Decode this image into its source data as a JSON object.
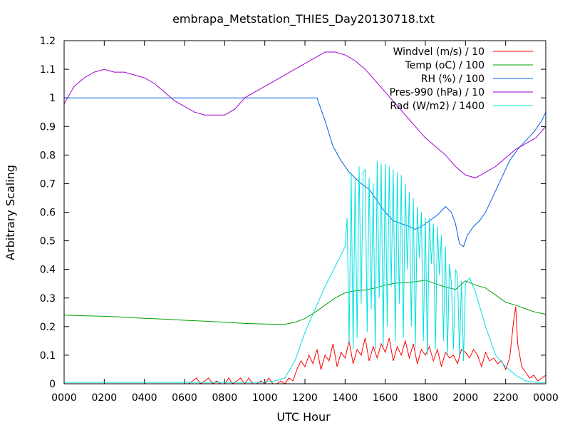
{
  "chart_data": {
    "type": "line",
    "title": "embrapa_Metstation_THIES_Day20130718.txt",
    "xlabel": "UTC Hour",
    "ylabel": "Arbitrary Scaling",
    "xlim": [
      0,
      24
    ],
    "ylim": [
      0,
      1.2
    ],
    "x_ticks": [
      "0000",
      "0200",
      "0400",
      "0600",
      "0800",
      "1000",
      "1200",
      "1400",
      "1600",
      "1800",
      "2000",
      "2200",
      "0000"
    ],
    "y_ticks": [
      "0",
      "0.1",
      "0.2",
      "0.3",
      "0.4",
      "0.5",
      "0.6",
      "0.7",
      "0.8",
      "0.9",
      "1",
      "1.1",
      "1.2"
    ],
    "grid": false,
    "legend_position": "top-right",
    "series": [
      {
        "name": "Windvel (m/s) / 10",
        "color": "#ff0000",
        "x": [
          0,
          6.2,
          6.4,
          6.6,
          6.8,
          7.0,
          7.2,
          7.4,
          7.6,
          7.8,
          8.0,
          8.2,
          8.4,
          8.6,
          8.8,
          9.0,
          9.2,
          9.4,
          9.6,
          9.8,
          10.0,
          10.2,
          10.4,
          10.6,
          10.8,
          11.0,
          11.2,
          11.4,
          11.6,
          11.8,
          12.0,
          12.2,
          12.4,
          12.6,
          12.8,
          13.0,
          13.2,
          13.4,
          13.6,
          13.8,
          14.0,
          14.2,
          14.4,
          14.6,
          14.8,
          15.0,
          15.2,
          15.4,
          15.6,
          15.8,
          16.0,
          16.2,
          16.4,
          16.6,
          16.8,
          17.0,
          17.2,
          17.4,
          17.6,
          17.8,
          18.0,
          18.2,
          18.4,
          18.6,
          18.8,
          19.0,
          19.2,
          19.4,
          19.6,
          19.8,
          20.0,
          20.2,
          20.4,
          20.6,
          20.8,
          21.0,
          21.2,
          21.4,
          21.6,
          21.8,
          22.0,
          22.2,
          22.4,
          22.5,
          22.6,
          22.8,
          23.0,
          23.2,
          23.4,
          23.6,
          23.8,
          24.0
        ],
        "values": [
          0,
          0,
          0.01,
          0.02,
          0,
          0.01,
          0.02,
          0,
          0.01,
          0,
          0,
          0.02,
          0,
          0.01,
          0.02,
          0,
          0.02,
          0,
          0,
          0.01,
          0,
          0.02,
          0,
          0,
          0.01,
          0,
          0.02,
          0.01,
          0.05,
          0.08,
          0.06,
          0.1,
          0.07,
          0.12,
          0.05,
          0.1,
          0.08,
          0.14,
          0.06,
          0.11,
          0.09,
          0.15,
          0.07,
          0.12,
          0.1,
          0.16,
          0.08,
          0.13,
          0.09,
          0.14,
          0.11,
          0.16,
          0.08,
          0.13,
          0.1,
          0.15,
          0.09,
          0.14,
          0.07,
          0.12,
          0.1,
          0.13,
          0.08,
          0.12,
          0.06,
          0.11,
          0.09,
          0.1,
          0.07,
          0.12,
          0.11,
          0.09,
          0.12,
          0.1,
          0.06,
          0.11,
          0.08,
          0.09,
          0.07,
          0.08,
          0.05,
          0.09,
          0.22,
          0.27,
          0.14,
          0.06,
          0.04,
          0.02,
          0.03,
          0.01,
          0.02,
          0.03
        ]
      },
      {
        "name": "Temp (oC) / 100",
        "color": "#00a000",
        "x": [
          0,
          1,
          2,
          3,
          4,
          5,
          6,
          7,
          8,
          9,
          10,
          10.5,
          11,
          11.5,
          12,
          12.5,
          13,
          13.5,
          14,
          14.5,
          15,
          15.5,
          16,
          16.5,
          17,
          17.5,
          18,
          18.5,
          19,
          19.5,
          20,
          20.5,
          21,
          21.5,
          22,
          22.5,
          23,
          23.5,
          24
        ],
        "values": [
          0.24,
          0.238,
          0.236,
          0.233,
          0.229,
          0.226,
          0.222,
          0.219,
          0.215,
          0.211,
          0.209,
          0.208,
          0.208,
          0.215,
          0.228,
          0.25,
          0.275,
          0.3,
          0.318,
          0.325,
          0.328,
          0.335,
          0.345,
          0.352,
          0.353,
          0.357,
          0.362,
          0.35,
          0.338,
          0.33,
          0.36,
          0.345,
          0.335,
          0.31,
          0.285,
          0.275,
          0.262,
          0.25,
          0.243
        ]
      },
      {
        "name": "RH (%) / 100",
        "color": "#0060e0",
        "x": [
          0,
          2,
          4,
          6,
          8,
          10,
          11,
          12,
          12.4,
          12.6,
          13.0,
          13.4,
          13.8,
          14.2,
          14.5,
          14.8,
          15.2,
          15.6,
          16.0,
          16.4,
          16.8,
          17.2,
          17.5,
          17.8,
          18.2,
          18.6,
          19.0,
          19.3,
          19.5,
          19.7,
          19.9,
          20.1,
          20.4,
          20.7,
          21.0,
          21.4,
          21.8,
          22.2,
          22.6,
          23.0,
          23.4,
          23.8,
          24.0
        ],
        "values": [
          1,
          1,
          1,
          1,
          1,
          1,
          1,
          1,
          1,
          1,
          0.92,
          0.83,
          0.78,
          0.74,
          0.72,
          0.7,
          0.68,
          0.64,
          0.6,
          0.57,
          0.56,
          0.55,
          0.54,
          0.55,
          0.57,
          0.59,
          0.62,
          0.6,
          0.56,
          0.49,
          0.48,
          0.52,
          0.55,
          0.57,
          0.6,
          0.66,
          0.72,
          0.78,
          0.82,
          0.85,
          0.88,
          0.92,
          0.95
        ]
      },
      {
        "name": "Pres-990 (hPa) / 10",
        "color": "#a000d0",
        "x": [
          0,
          0.5,
          1,
          1.5,
          2,
          2.5,
          3,
          3.5,
          4,
          4.5,
          5,
          5.5,
          6,
          6.5,
          7,
          7.5,
          8,
          8.5,
          9,
          9.5,
          10,
          10.5,
          11,
          11.5,
          12,
          12.5,
          13,
          13.5,
          14,
          14.5,
          15,
          15.5,
          16,
          16.5,
          17,
          17.5,
          18,
          18.5,
          19,
          19.5,
          20,
          20.5,
          21,
          21.5,
          22,
          22.5,
          23,
          23.5,
          24
        ],
        "values": [
          0.98,
          1.04,
          1.07,
          1.09,
          1.1,
          1.09,
          1.09,
          1.08,
          1.07,
          1.05,
          1.02,
          0.99,
          0.97,
          0.95,
          0.94,
          0.94,
          0.94,
          0.96,
          1.0,
          1.02,
          1.04,
          1.06,
          1.08,
          1.1,
          1.12,
          1.14,
          1.16,
          1.16,
          1.15,
          1.13,
          1.1,
          1.06,
          1.02,
          0.98,
          0.94,
          0.9,
          0.86,
          0.83,
          0.8,
          0.76,
          0.73,
          0.72,
          0.74,
          0.76,
          0.79,
          0.82,
          0.84,
          0.86,
          0.9
        ]
      },
      {
        "name": "Rad (W/m2) / 1400",
        "color": "#00e0e0",
        "x": [
          0,
          10,
          10.5,
          11,
          11.5,
          12,
          12.5,
          13,
          13.5,
          13.8,
          14.0,
          14.1,
          14.2,
          14.3,
          14.4,
          14.5,
          14.6,
          14.7,
          14.8,
          14.9,
          15.0,
          15.1,
          15.2,
          15.3,
          15.4,
          15.5,
          15.6,
          15.7,
          15.8,
          15.9,
          16.0,
          16.1,
          16.2,
          16.3,
          16.4,
          16.5,
          16.6,
          16.7,
          16.8,
          16.9,
          17.0,
          17.1,
          17.2,
          17.3,
          17.4,
          17.5,
          17.6,
          17.7,
          17.8,
          17.9,
          18.0,
          18.1,
          18.2,
          18.3,
          18.4,
          18.5,
          18.6,
          18.7,
          18.8,
          18.9,
          19.0,
          19.1,
          19.2,
          19.3,
          19.4,
          19.5,
          19.6,
          19.7,
          19.8,
          19.9,
          20.0,
          20.2,
          20.5,
          21,
          21.5,
          22,
          22.5,
          23,
          23.5,
          24
        ],
        "values": [
          0.005,
          0.005,
          0.01,
          0.02,
          0.08,
          0.18,
          0.26,
          0.34,
          0.41,
          0.45,
          0.48,
          0.58,
          0.14,
          0.74,
          0.12,
          0.72,
          0.16,
          0.76,
          0.28,
          0.74,
          0.75,
          0.18,
          0.72,
          0.26,
          0.7,
          0.12,
          0.78,
          0.3,
          0.77,
          0.13,
          0.77,
          0.2,
          0.76,
          0.34,
          0.75,
          0.15,
          0.74,
          0.28,
          0.73,
          0.16,
          0.7,
          0.4,
          0.67,
          0.2,
          0.65,
          0.13,
          0.62,
          0.44,
          0.6,
          0.15,
          0.58,
          0.1,
          0.58,
          0.42,
          0.56,
          0.12,
          0.55,
          0.38,
          0.52,
          0.15,
          0.48,
          0.1,
          0.42,
          0.35,
          0.12,
          0.4,
          0.38,
          0.1,
          0.36,
          0.08,
          0.35,
          0.37,
          0.32,
          0.2,
          0.1,
          0.06,
          0.03,
          0.01,
          0.005,
          0.005
        ]
      }
    ]
  }
}
